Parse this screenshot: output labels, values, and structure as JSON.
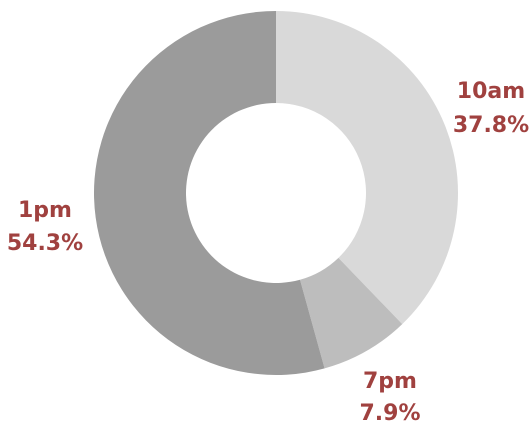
{
  "chart_data": {
    "type": "pie",
    "donut": true,
    "slices": [
      {
        "label": "10am",
        "value": 37.8,
        "value_label": "37.8%",
        "color": "#d9d9d9"
      },
      {
        "label": "7pm",
        "value": 7.9,
        "value_label": "7.9%",
        "color": "#bdbdbd"
      },
      {
        "label": "1pm",
        "value": 54.3,
        "value_label": "54.3%",
        "color": "#9b9b9b"
      }
    ],
    "label_color": "#a0413f",
    "legend": "none"
  }
}
